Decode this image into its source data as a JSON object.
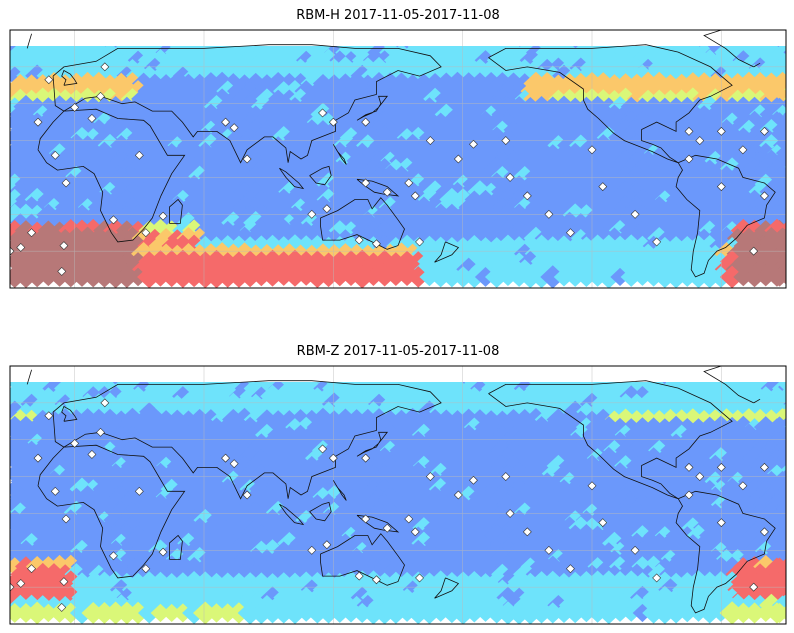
{
  "maps": [
    {
      "title": "RBM-H 2017-11-05-2017-11-08",
      "hotspots": [
        {
          "region": "north-atlantic-band",
          "lon": [
            -150,
            30
          ],
          "lat": [
            40,
            55
          ],
          "level": 0.7
        },
        {
          "region": "southern-ocean",
          "lon": [
            -60,
            160
          ],
          "lat": [
            -60,
            -38
          ],
          "level": 0.8
        },
        {
          "region": "south-atlantic",
          "lon": [
            -55,
            30
          ],
          "lat": [
            -60,
            -25
          ],
          "level": 1.0
        },
        {
          "region": "indian-ocean-south",
          "lon": [
            5,
            60
          ],
          "lat": [
            -45,
            -28
          ],
          "level": 0.75
        }
      ]
    },
    {
      "title": "RBM-Z 2017-11-05-2017-11-08",
      "hotspots": [
        {
          "region": "north-atlantic-band",
          "lon": [
            -110,
            -20
          ],
          "lat": [
            47,
            55
          ],
          "level": 0.55
        },
        {
          "region": "southern-ocean",
          "lon": [
            -60,
            80
          ],
          "lat": [
            -60,
            -48
          ],
          "level": 0.45
        },
        {
          "region": "south-atlantic",
          "lon": [
            -55,
            0
          ],
          "lat": [
            -50,
            -25
          ],
          "level": 0.8
        }
      ]
    }
  ],
  "colormap": [
    "#6a5af8",
    "#5b8dfb",
    "#5fe0fb",
    "#d7f76a",
    "#fbc35a",
    "#f45a5a",
    "#b06a6a"
  ],
  "colormap_name": "jet (translucent)",
  "projection": "PlateCarree, centered 150°E",
  "lon_range": [
    -30,
    330
  ],
  "lat_range": [
    -60,
    80
  ],
  "station_markers": "white diamonds with black outline"
}
